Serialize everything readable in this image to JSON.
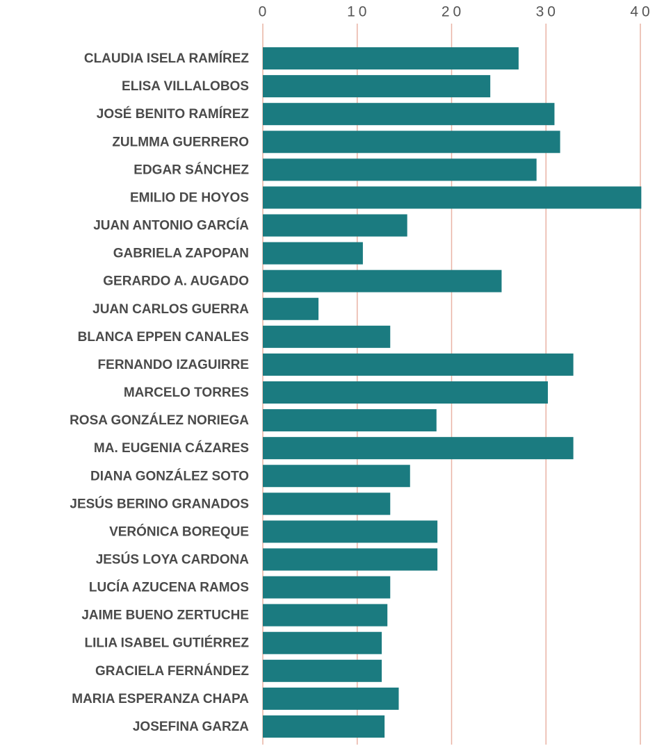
{
  "chart_data": {
    "type": "bar",
    "orientation": "horizontal",
    "categories": [
      "CLAUDIA ISELA RAMÍREZ",
      "ELISA VILLALOBOS",
      "JOSÉ BENITO RAMÍREZ",
      "ZULMMA GUERRERO",
      "EDGAR SÁNCHEZ",
      "EMILIO DE HOYOS",
      "JUAN ANTONIO GARCÍA",
      "GABRIELA ZAPOPAN",
      "GERARDO A. AUGADO",
      "JUAN CARLOS GUERRA",
      "BLANCA EPPEN CANALES",
      "FERNANDO IZAGUIRRE",
      "MARCELO TORRES",
      "ROSA GONZÁLEZ NORIEGA",
      "MA. EUGENIA CÁZARES",
      "DIANA GONZÁLEZ SOTO",
      "JESÚS BERINO GRANADOS",
      "VERÓNICA BOREQUE",
      "JESÚS LOYA CARDONA",
      "LUCÍA AZUCENA RAMOS",
      "JAIME BUENO ZERTUCHE",
      "LILIA ISABEL GUTIÉRREZ",
      "GRACIELA FERNÁNDEZ",
      "MARIA ESPERANZA CHAPA",
      "JOSEFINA GARZA"
    ],
    "values": [
      27.1,
      24.1,
      30.9,
      31.5,
      29,
      40.1,
      15.3,
      10.6,
      25.3,
      5.9,
      13.5,
      32.9,
      30.2,
      18.4,
      32.9,
      15.6,
      13.5,
      18.5,
      18.5,
      13.5,
      13.2,
      12.6,
      12.6,
      14.4,
      12.9
    ],
    "color": "#1b7b80",
    "grid_color": "#e9b3a4",
    "xlim": [
      0,
      40
    ],
    "xticks": [
      0,
      10,
      20,
      30,
      40
    ],
    "grid": true
  }
}
